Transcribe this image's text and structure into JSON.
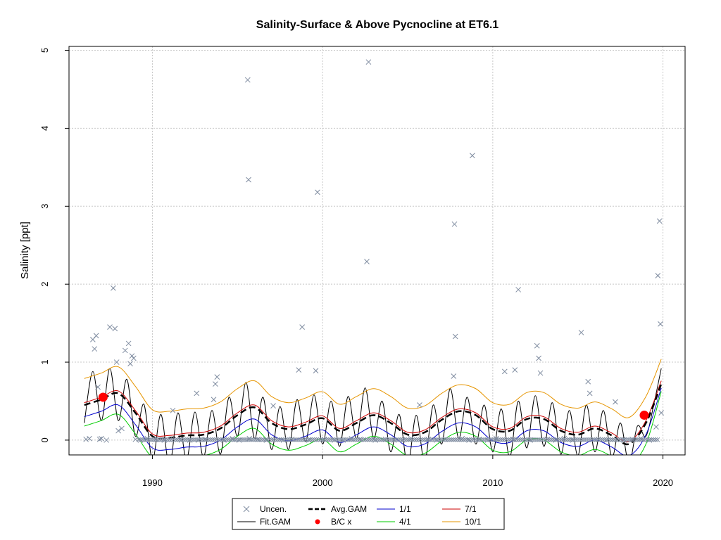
{
  "chart_data": {
    "type": "scatter",
    "title": "Salinity-Surface & Above Pycnocline at ET6.1",
    "xlabel": "",
    "ylabel": "Salinity [ppt]",
    "xlim": [
      1985.1,
      2021.3
    ],
    "ylim": [
      -0.19,
      5.05
    ],
    "xticks": [
      1990,
      2000,
      2010,
      2020
    ],
    "yticks": [
      0,
      1,
      2,
      3,
      4,
      5
    ],
    "grid": true,
    "legend": {
      "position": "bottom",
      "entries": [
        {
          "label": "Uncen.",
          "kind": "x-marker",
          "color": "#7f8ca0"
        },
        {
          "label": "Avg.GAM",
          "kind": "dashed-line",
          "color": "#000000"
        },
        {
          "label": "1/1",
          "kind": "line",
          "color": "#0000cd"
        },
        {
          "label": "7/1",
          "kind": "line",
          "color": "#cd0000"
        },
        {
          "label": "Fit.GAM",
          "kind": "line",
          "color": "#000000"
        },
        {
          "label": "B/C x",
          "kind": "dot",
          "color": "#ff0000"
        },
        {
          "label": "4/1",
          "kind": "line",
          "color": "#00cd00"
        },
        {
          "label": "10/1",
          "kind": "line",
          "color": "#e69500"
        }
      ]
    },
    "colors": {
      "uncen": "#7f8ca0",
      "avg": "#000000",
      "fit": "#000000",
      "d1": "#0000cd",
      "d4": "#00cd00",
      "d7": "#cd0000",
      "d10": "#e69500",
      "bc": "#ff0000"
    },
    "uncensored_points": {
      "x": [
        1986.1,
        1986.3,
        1986.5,
        1986.6,
        1986.7,
        1986.8,
        1986.9,
        1987.0,
        1987.3,
        1987.5,
        1987.7,
        1987.8,
        1987.9,
        1988.0,
        1988.2,
        1988.4,
        1988.6,
        1988.7,
        1988.8,
        1988.9,
        1989.0,
        1989.3,
        1989.7,
        1990.2,
        1990.7,
        1991.2,
        1991.7,
        1992.2,
        1992.6,
        1992.7,
        1993.1,
        1993.6,
        1993.7,
        1993.8,
        1994.2,
        1994.7,
        1995.1,
        1995.6,
        1995.65,
        1995.7,
        1996.2,
        1996.7,
        1997.1,
        1997.7,
        1998.2,
        1998.6,
        1998.8,
        1999.2,
        1999.6,
        1999.7,
        2000.1,
        2000.7,
        2001.2,
        2001.7,
        2002.2,
        2002.6,
        2002.7,
        2003.1,
        2003.7,
        2004.2,
        2004.7,
        2005.2,
        2005.7,
        2006.2,
        2006.7,
        2007.2,
        2007.7,
        2007.75,
        2007.8,
        2008.2,
        2008.6,
        2008.8,
        2009.2,
        2009.7,
        2010.2,
        2010.7,
        2011.2,
        2011.3,
        2011.5,
        2012.2,
        2012.6,
        2012.7,
        2012.8,
        2013.2,
        2013.7,
        2014.2,
        2014.7,
        2015.2,
        2015.6,
        2015.7,
        2016.2,
        2016.7,
        2017.2,
        2017.7,
        2018.2,
        2018.7,
        2019.2,
        2019.6,
        2019.7,
        2019.8,
        2019.85,
        2019.9
      ],
      "y": [
        0.01,
        0.02,
        1.29,
        1.17,
        1.34,
        0.68,
        0.01,
        0.02,
        0.0,
        1.45,
        1.95,
        1.43,
        1.0,
        0.12,
        0.15,
        1.15,
        1.24,
        0.98,
        1.08,
        1.05,
        0.01,
        0.0,
        0.02,
        0.01,
        0.0,
        0.38,
        0.0,
        0.0,
        0.6,
        0.0,
        0.01,
        0.52,
        0.72,
        0.81,
        0.0,
        0.02,
        0.0,
        4.62,
        3.34,
        0.02,
        0.01,
        0.0,
        0.44,
        0.0,
        0.01,
        0.9,
        1.45,
        0.0,
        0.89,
        3.18,
        0.01,
        0.0,
        0.0,
        0.02,
        0.01,
        2.29,
        4.85,
        0.0,
        0.01,
        0.0,
        0.0,
        0.02,
        0.45,
        0.01,
        0.0,
        0.01,
        0.82,
        2.77,
        1.33,
        0.02,
        0.0,
        3.65,
        0.01,
        0.0,
        0.02,
        0.88,
        0.01,
        0.9,
        1.93,
        0.0,
        1.21,
        1.05,
        0.86,
        0.01,
        0.0,
        0.02,
        0.0,
        1.38,
        0.75,
        0.6,
        0.01,
        0.0,
        0.49,
        0.0,
        0.01,
        0.02,
        0.0,
        0.17,
        2.11,
        2.81,
        1.49,
        0.35
      ]
    },
    "bc_points": {
      "x": [
        1987.1,
        2018.9
      ],
      "y": [
        0.55,
        0.32
      ]
    },
    "fit_gam": {
      "x": [
        1986.0,
        1986.5,
        1987.0,
        1987.5,
        1988.0,
        1988.5,
        1989.0,
        1989.5,
        1990.0,
        1990.5,
        1991.0,
        1991.5,
        1992.0,
        1992.5,
        1993.0,
        1993.5,
        1994.0,
        1994.5,
        1995.0,
        1995.5,
        1996.0,
        1996.5,
        1997.0,
        1997.5,
        1998.0,
        1998.5,
        1999.0,
        1999.5,
        2000.0,
        2000.5,
        2001.0,
        2001.5,
        2002.0,
        2002.5,
        2003.0,
        2003.5,
        2004.0,
        2004.5,
        2005.0,
        2005.5,
        2006.0,
        2006.5,
        2007.0,
        2007.5,
        2008.0,
        2008.5,
        2009.0,
        2009.5,
        2010.0,
        2010.5,
        2011.0,
        2011.5,
        2012.0,
        2012.5,
        2013.0,
        2013.5,
        2014.0,
        2014.5,
        2015.0,
        2015.5,
        2016.0,
        2016.5,
        2017.0,
        2017.5,
        2018.0,
        2018.5,
        2019.0,
        2019.5,
        2019.9
      ],
      "y": [
        0.22,
        0.88,
        0.25,
        0.92,
        0.25,
        0.78,
        0.05,
        0.46,
        -0.25,
        0.33,
        -0.33,
        0.35,
        -0.25,
        0.36,
        -0.22,
        0.38,
        -0.18,
        0.55,
        0.05,
        0.74,
        0.02,
        0.55,
        -0.12,
        0.43,
        -0.12,
        0.52,
        -0.02,
        0.58,
        -0.05,
        0.5,
        -0.08,
        0.56,
        0.02,
        0.67,
        0.02,
        0.5,
        -0.15,
        0.33,
        -0.32,
        0.32,
        -0.28,
        0.45,
        -0.05,
        0.66,
        0.02,
        0.55,
        -0.05,
        0.45,
        -0.15,
        0.4,
        -0.22,
        0.5,
        -0.1,
        0.57,
        -0.08,
        0.48,
        -0.18,
        0.38,
        -0.2,
        0.45,
        -0.15,
        0.38,
        -0.22,
        0.22,
        -0.3,
        0.18,
        0.05,
        0.5,
        0.92
      ]
    },
    "avg_gam": {
      "x": [
        1986.0,
        1987.0,
        1988.0,
        1989.0,
        1990.0,
        1991.0,
        1992.0,
        1993.0,
        1994.0,
        1995.0,
        1996.0,
        1997.0,
        1998.0,
        1999.0,
        2000.0,
        2001.0,
        2002.0,
        2003.0,
        2004.0,
        2005.0,
        2006.0,
        2007.0,
        2008.0,
        2009.0,
        2010.0,
        2011.0,
        2012.0,
        2013.0,
        2014.0,
        2015.0,
        2016.0,
        2017.0,
        2018.0,
        2019.0,
        2019.9
      ],
      "y": [
        0.45,
        0.52,
        0.6,
        0.35,
        0.05,
        0.03,
        0.06,
        0.07,
        0.15,
        0.32,
        0.42,
        0.22,
        0.14,
        0.2,
        0.28,
        0.12,
        0.22,
        0.32,
        0.22,
        0.07,
        0.1,
        0.26,
        0.37,
        0.32,
        0.14,
        0.12,
        0.27,
        0.27,
        0.12,
        0.07,
        0.15,
        0.06,
        -0.05,
        0.22,
        0.72
      ]
    },
    "series": [
      {
        "name": "1/1",
        "key": "d1",
        "offset": -0.15
      },
      {
        "name": "4/1",
        "key": "d4",
        "offset": -0.27
      },
      {
        "name": "7/1",
        "key": "d7",
        "offset": 0.03
      },
      {
        "name": "10/1",
        "key": "d10",
        "offset": 0.34
      }
    ]
  }
}
